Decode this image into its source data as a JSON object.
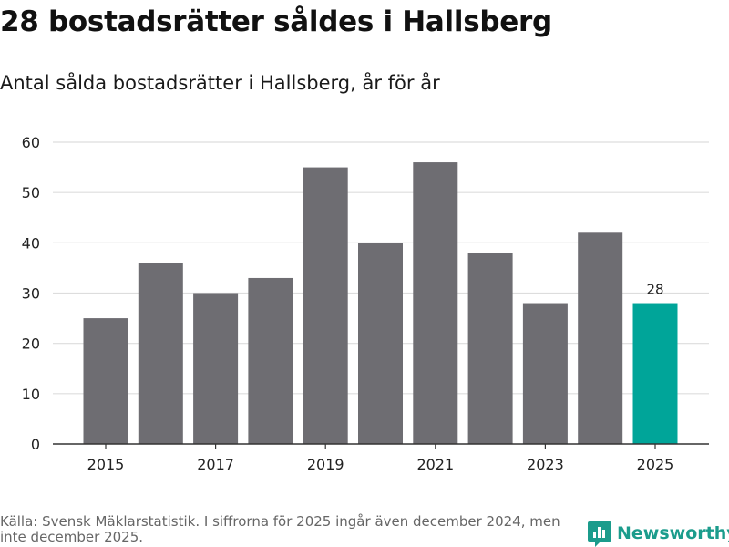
{
  "header": {
    "title": "28 bostadsrätter såldes i Hallsberg",
    "subtitle": "Antal sålda bostadsrätter i Hallsberg, år för år"
  },
  "chart_data": {
    "type": "bar",
    "title": "28 bostadsrätter såldes i Hallsberg",
    "subtitle": "Antal sålda bostadsrätter i Hallsberg, år för år",
    "categories": [
      "2015",
      "2016",
      "2017",
      "2018",
      "2019",
      "2020",
      "2021",
      "2022",
      "2023",
      "2024",
      "2025"
    ],
    "values": [
      25,
      36,
      30,
      33,
      55,
      40,
      56,
      38,
      28,
      42,
      28
    ],
    "x_tick_labels": [
      "2015",
      "2017",
      "2019",
      "2021",
      "2023",
      "2025"
    ],
    "y_ticks": [
      0,
      10,
      20,
      30,
      40,
      50,
      60
    ],
    "ylim": [
      0,
      60
    ],
    "xlabel": "",
    "ylabel": "",
    "grid": true,
    "highlight_index": 10,
    "annotations": [
      {
        "category": "2025",
        "text": "28"
      }
    ],
    "colors": {
      "bar": "#6e6d72",
      "highlight": "#00a599",
      "grid": "#dddddd",
      "axis": "#333333"
    }
  },
  "footer": {
    "source": "Källa: Svensk Mäklarstatistik. I siffrorna för 2025 ingår även december 2024, men inte december 2025.",
    "brand": "Newsworthy",
    "brand_icon": "newsworthy-logo-icon"
  }
}
